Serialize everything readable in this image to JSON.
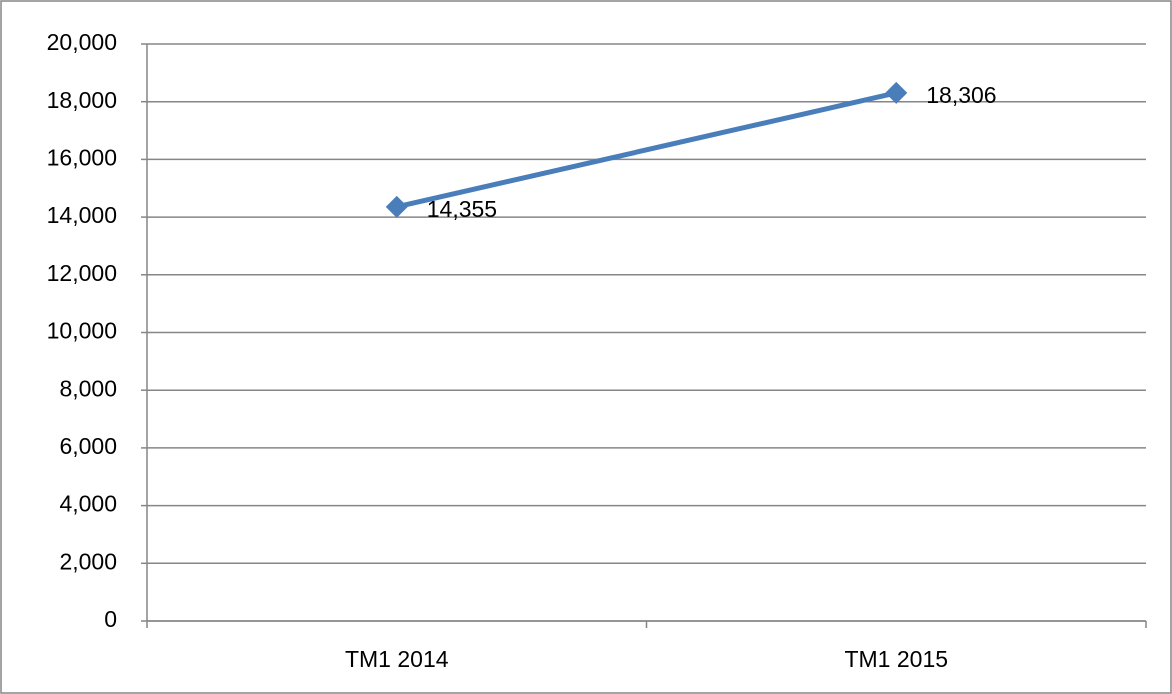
{
  "chart_data": {
    "type": "line",
    "categories": [
      "TM1 2014",
      "TM1 2015"
    ],
    "values": [
      14355,
      18306
    ],
    "value_labels": [
      "14,355",
      "18,306"
    ],
    "color": "#4a7ebb",
    "ylim": [
      0,
      20000
    ],
    "yticks": [
      0,
      {
        "value": 2000,
        "label": "2,000"
      },
      {
        "value": 4000,
        "label": "4,000"
      },
      {
        "value": 6000,
        "label": "6,000"
      },
      {
        "value": 8000,
        "label": "8,000"
      },
      {
        "value": 10000,
        "label": "10,000"
      },
      {
        "value": 12000,
        "label": "12,000"
      },
      {
        "value": 14000,
        "label": "14,000"
      },
      {
        "value": 16000,
        "label": "16,000"
      },
      {
        "value": 18000,
        "label": "18,000"
      },
      {
        "value": 20000,
        "label": "20,000"
      }
    ],
    "grid": true
  }
}
